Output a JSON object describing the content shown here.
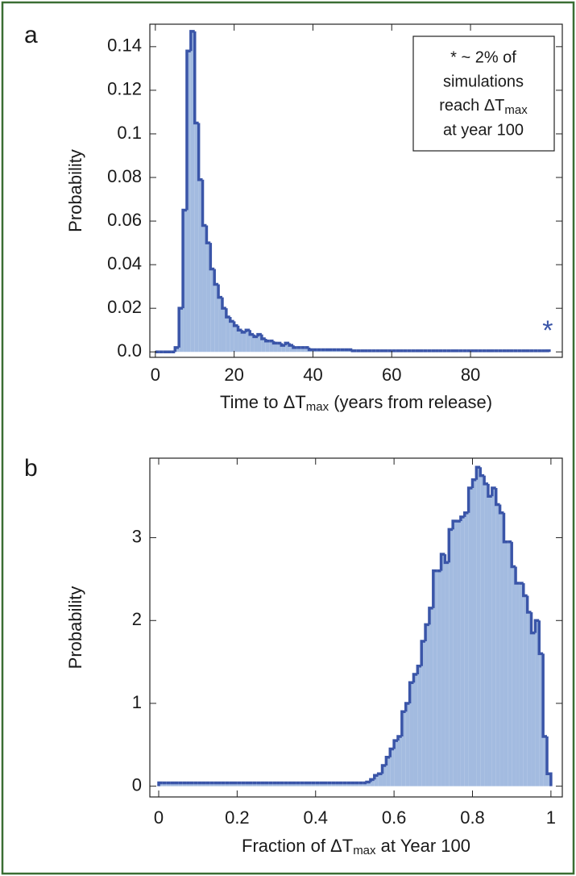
{
  "chart_data": [
    {
      "type": "histogram",
      "panel": "a",
      "xlabel": [
        "Time to ΔT",
        "max",
        " (years from release)"
      ],
      "ylabel": "Probability",
      "annotation": [
        "* ~ 2% of",
        "simulations",
        [
          "reach ΔT",
          "max"
        ],
        "at year 100"
      ],
      "marker": "*",
      "color": "#3a55a8",
      "fill": "#a3bbe0",
      "bins": [
        0,
        1,
        2,
        3,
        4,
        5,
        6,
        7,
        8,
        9,
        10,
        11,
        12,
        13,
        14,
        15,
        16,
        17,
        18,
        19,
        20,
        21,
        22,
        23,
        24,
        25,
        26,
        27,
        28,
        29,
        30,
        31,
        32,
        33,
        34,
        35,
        36,
        37,
        38,
        39,
        40,
        41,
        42,
        43,
        44,
        45,
        46,
        47,
        48,
        49,
        50,
        51,
        52,
        53,
        54,
        55,
        56,
        57,
        58,
        59,
        60,
        61,
        62,
        63,
        64,
        65,
        66,
        67,
        68,
        69,
        70,
        71,
        72,
        73,
        74,
        75,
        76,
        77,
        78,
        79,
        80,
        81,
        82,
        83,
        84,
        85,
        86,
        87,
        88,
        89,
        90,
        91,
        92,
        93,
        94,
        95,
        96,
        97,
        98,
        99,
        100
      ],
      "values": [
        0,
        0,
        0,
        0,
        0,
        0.002,
        0.02,
        0.065,
        0.138,
        0.147,
        0.105,
        0.079,
        0.058,
        0.05,
        0.038,
        0.031,
        0.025,
        0.02,
        0.016,
        0.014,
        0.012,
        0.01,
        0.009,
        0.01,
        0.008,
        0.007,
        0.008,
        0.006,
        0.005,
        0.005,
        0.004,
        0.004,
        0.003,
        0.004,
        0.003,
        0.002,
        0.002,
        0.002,
        0.002,
        0.001,
        0.001,
        0.001,
        0.001,
        0.001,
        0.001,
        0.001,
        0.001,
        0.001,
        0.001,
        0.001,
        0.0005,
        0.0005,
        0.0005,
        0.0005,
        0.0005,
        0.0005,
        0.0005,
        0.0005,
        0.0005,
        0.0005,
        0.0005,
        0.0005,
        0.0005,
        0.0005,
        0.0005,
        0.0005,
        0.0005,
        0.0005,
        0.0005,
        0.0005,
        0.0005,
        0.0005,
        0.0005,
        0.0005,
        0.0005,
        0.0005,
        0.0005,
        0.0005,
        0.0005,
        0.0005,
        0.0005,
        0.0005,
        0.0005,
        0.0005,
        0.0005,
        0.0005,
        0.0005,
        0.0005,
        0.0005,
        0.0005,
        0.0005,
        0.0005,
        0.0005,
        0.0005,
        0.0005,
        0.0005,
        0.0005,
        0.0005,
        0.0005,
        0.0005
      ],
      "xlim": [
        -1.4,
        103.3
      ],
      "xticks": [
        0,
        20,
        40,
        60,
        80
      ],
      "ylim": [
        -0.0025,
        0.1503
      ],
      "yticks": [
        {
          "value": 0,
          "label": "0.0"
        },
        0.02,
        0.04,
        0.06,
        0.08,
        0.1,
        0.12,
        0.14
      ]
    },
    {
      "type": "histogram",
      "panel": "b",
      "xlabel": [
        "Fraction of ΔT",
        "max",
        " at Year 100"
      ],
      "ylabel": "Probability",
      "color": "#3a55a8",
      "fill": "#a3bbe0",
      "bins": [
        0,
        0.01,
        0.02,
        0.03,
        0.04,
        0.05,
        0.06,
        0.07,
        0.08,
        0.09,
        0.1,
        0.11,
        0.12,
        0.13,
        0.14,
        0.15,
        0.16,
        0.17,
        0.18,
        0.19,
        0.2,
        0.21,
        0.22,
        0.23,
        0.24,
        0.25,
        0.26,
        0.27,
        0.28,
        0.29,
        0.3,
        0.31,
        0.32,
        0.33,
        0.34,
        0.35,
        0.36,
        0.37,
        0.38,
        0.39,
        0.4,
        0.41,
        0.42,
        0.43,
        0.44,
        0.45,
        0.46,
        0.47,
        0.48,
        0.49,
        0.5,
        0.51,
        0.52,
        0.53,
        0.54,
        0.55,
        0.56,
        0.57,
        0.58,
        0.59,
        0.6,
        0.61,
        0.62,
        0.63,
        0.64,
        0.65,
        0.66,
        0.67,
        0.68,
        0.69,
        0.7,
        0.71,
        0.72,
        0.73,
        0.74,
        0.75,
        0.76,
        0.77,
        0.78,
        0.79,
        0.8,
        0.81,
        0.82,
        0.83,
        0.84,
        0.85,
        0.86,
        0.87,
        0.88,
        0.89,
        0.9,
        0.91,
        0.92,
        0.93,
        0.94,
        0.95,
        0.96,
        0.97,
        0.98,
        0.99,
        1
      ],
      "values": [
        0.04,
        0.04,
        0.04,
        0.04,
        0.04,
        0.04,
        0.04,
        0.04,
        0.04,
        0.04,
        0.04,
        0.04,
        0.04,
        0.04,
        0.04,
        0.04,
        0.04,
        0.04,
        0.04,
        0.04,
        0.04,
        0.04,
        0.04,
        0.04,
        0.04,
        0.04,
        0.04,
        0.04,
        0.04,
        0.04,
        0.04,
        0.04,
        0.04,
        0.04,
        0.04,
        0.04,
        0.04,
        0.04,
        0.04,
        0.04,
        0.04,
        0.04,
        0.04,
        0.04,
        0.04,
        0.04,
        0.04,
        0.04,
        0.04,
        0.04,
        0.04,
        0.04,
        0.04,
        0.05,
        0.08,
        0.13,
        0.15,
        0.25,
        0.35,
        0.45,
        0.55,
        0.6,
        0.9,
        1.0,
        1.25,
        1.35,
        1.45,
        1.75,
        1.95,
        2.15,
        2.6,
        2.6,
        2.8,
        2.7,
        3.1,
        3.2,
        3.2,
        3.25,
        3.3,
        3.6,
        3.7,
        3.85,
        3.75,
        3.65,
        3.5,
        3.6,
        3.4,
        3.3,
        2.95,
        2.95,
        2.65,
        2.45,
        2.45,
        2.3,
        2.1,
        1.85,
        2.0,
        1.6,
        0.6,
        0.15
      ],
      "xlim": [
        -0.0226,
        1.029
      ],
      "xticks": [
        0,
        0.2,
        0.4,
        0.6,
        0.8,
        1
      ],
      "ylim": [
        -0.13,
        3.96
      ],
      "yticks": [
        0,
        1,
        2,
        3
      ]
    }
  ]
}
